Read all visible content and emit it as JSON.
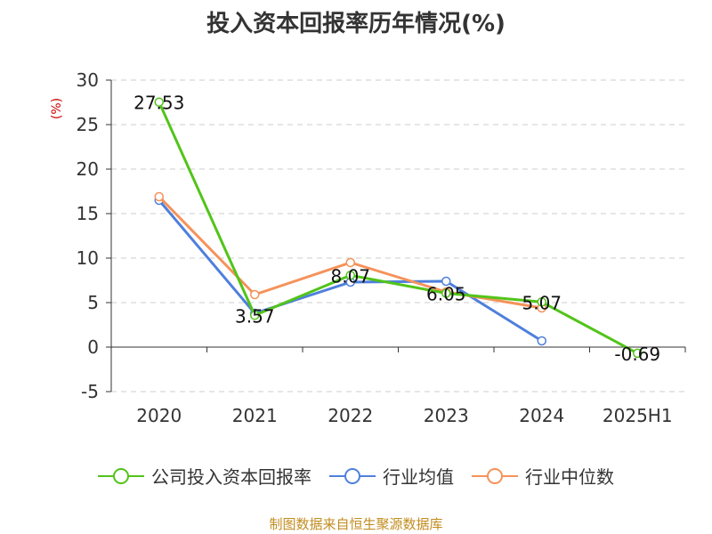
{
  "title": "投入资本回报率历年情况(%)",
  "footer": "制图数据来自恒生聚源数据库",
  "chart_data": {
    "type": "line",
    "categories": [
      "2020",
      "2021",
      "2022",
      "2023",
      "2024",
      "2025H1"
    ],
    "ylabel": "(%)",
    "ylim": [
      -5,
      30
    ],
    "yticks": [
      -5,
      0,
      5,
      10,
      15,
      20,
      25,
      30
    ],
    "grid": true,
    "legend_position": "bottom",
    "series": [
      {
        "name": "公司投入资本回报率",
        "color": "#52c41a",
        "values": [
          27.53,
          3.57,
          8.07,
          6.05,
          5.07,
          -0.69
        ],
        "labels": [
          "27.53",
          "3.57",
          "8.07",
          "6.05",
          "5.07",
          "-0.69"
        ]
      },
      {
        "name": "行业均值",
        "color": "#4f7fdc",
        "values": [
          16.5,
          3.8,
          7.3,
          7.4,
          0.7,
          null
        ]
      },
      {
        "name": "行业中位数",
        "color": "#f5925a",
        "values": [
          16.9,
          5.9,
          9.5,
          6.2,
          4.4,
          null
        ]
      }
    ]
  }
}
